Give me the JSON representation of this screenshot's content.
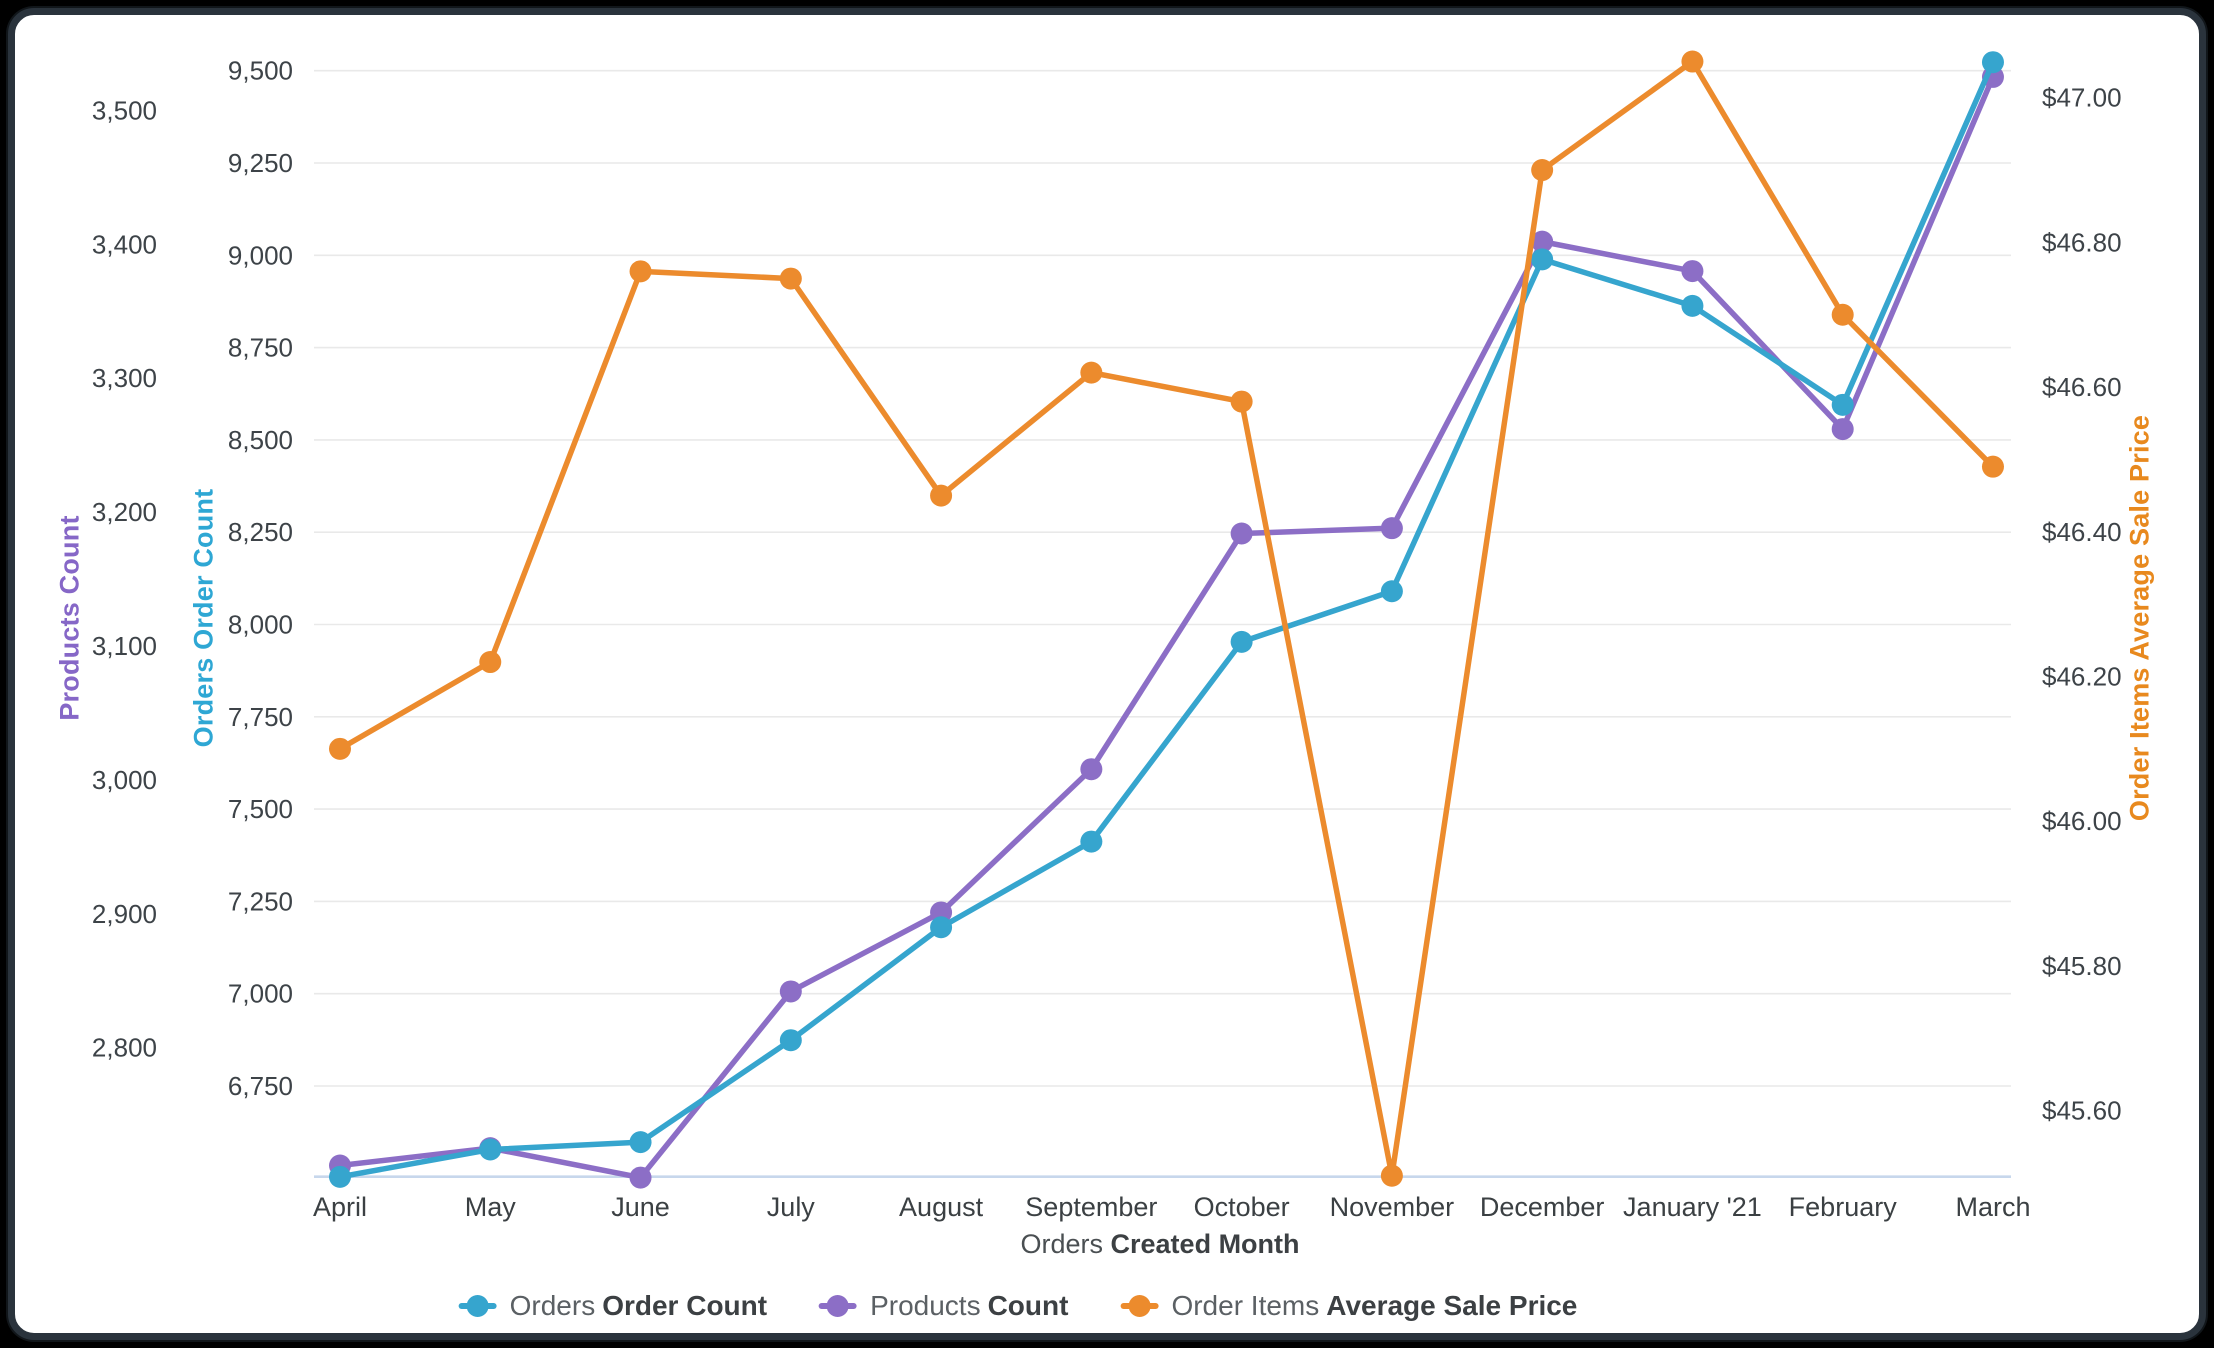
{
  "chart_data": {
    "type": "line",
    "title": "",
    "x_axis": {
      "title_regular": "Orders",
      "title_bold": "Created Month"
    },
    "categories": [
      "April",
      "May",
      "June",
      "July",
      "August",
      "September",
      "October",
      "November",
      "December",
      "January '21",
      "February",
      "March"
    ],
    "axes": {
      "products": {
        "title": "Products Count",
        "title_color": "#8667c7",
        "ticks": [
          {
            "v": 3500,
            "label": "3,500"
          },
          {
            "v": 3400,
            "label": "3,400"
          },
          {
            "v": 3300,
            "label": "3,300"
          },
          {
            "v": 3200,
            "label": "3,200"
          },
          {
            "v": 3100,
            "label": "3,100"
          },
          {
            "v": 3000,
            "label": "3,000"
          },
          {
            "v": 2900,
            "label": "2,900"
          },
          {
            "v": 2800,
            "label": "2,800"
          }
        ]
      },
      "orders": {
        "title": "Orders Order Count",
        "title_color": "#2ea7d4",
        "ticks": [
          {
            "v": 9500,
            "label": "9,500"
          },
          {
            "v": 9250,
            "label": "9,250"
          },
          {
            "v": 9000,
            "label": "9,000"
          },
          {
            "v": 8750,
            "label": "8,750"
          },
          {
            "v": 8500,
            "label": "8,500"
          },
          {
            "v": 8250,
            "label": "8,250"
          },
          {
            "v": 8000,
            "label": "8,000"
          },
          {
            "v": 7750,
            "label": "7,750"
          },
          {
            "v": 7500,
            "label": "7,500"
          },
          {
            "v": 7250,
            "label": "7,250"
          },
          {
            "v": 7000,
            "label": "7,000"
          },
          {
            "v": 6750,
            "label": "6,750"
          }
        ]
      },
      "price": {
        "title": "Order Items Average Sale Price",
        "title_color": "#e8891e",
        "ticks": [
          {
            "v": 47.0,
            "label": "$47.00"
          },
          {
            "v": 46.8,
            "label": "$46.80"
          },
          {
            "v": 46.6,
            "label": "$46.60"
          },
          {
            "v": 46.4,
            "label": "$46.40"
          },
          {
            "v": 46.2,
            "label": "$46.20"
          },
          {
            "v": 46.0,
            "label": "$46.00"
          },
          {
            "v": 45.8,
            "label": "$45.80"
          },
          {
            "v": 45.6,
            "label": "$45.60"
          }
        ]
      }
    },
    "series": [
      {
        "id": "products-count",
        "legend_regular": "Products",
        "legend_bold": "Count",
        "axis": "products",
        "color": "#8c6ec6",
        "values": [
          2712,
          2725,
          2703,
          2842,
          2901,
          3008,
          3184,
          3188,
          3402,
          3380,
          3262,
          3525
        ]
      },
      {
        "id": "orders-order-count",
        "legend_regular": "Orders",
        "legend_bold": "Order Count",
        "axis": "orders",
        "color": "#36a5ce",
        "values": [
          6504,
          6578,
          6598,
          6874,
          7180,
          7412,
          7953,
          8090,
          8989,
          8863,
          8595,
          9523
        ]
      },
      {
        "id": "order-items-average-sale-price",
        "legend_regular": "Order Items",
        "legend_bold": "Average Sale Price",
        "axis": "price",
        "color": "#ec8b2d",
        "values": [
          46.1,
          46.22,
          46.76,
          46.75,
          46.45,
          46.62,
          46.58,
          45.51,
          46.9,
          47.05,
          46.7,
          46.49
        ]
      }
    ],
    "grid": {
      "gridline_color": "#e9e9e9",
      "baseline_color": "#c7d7ec",
      "tick_text_color": "#3d4348"
    },
    "legend_position": "bottom"
  }
}
